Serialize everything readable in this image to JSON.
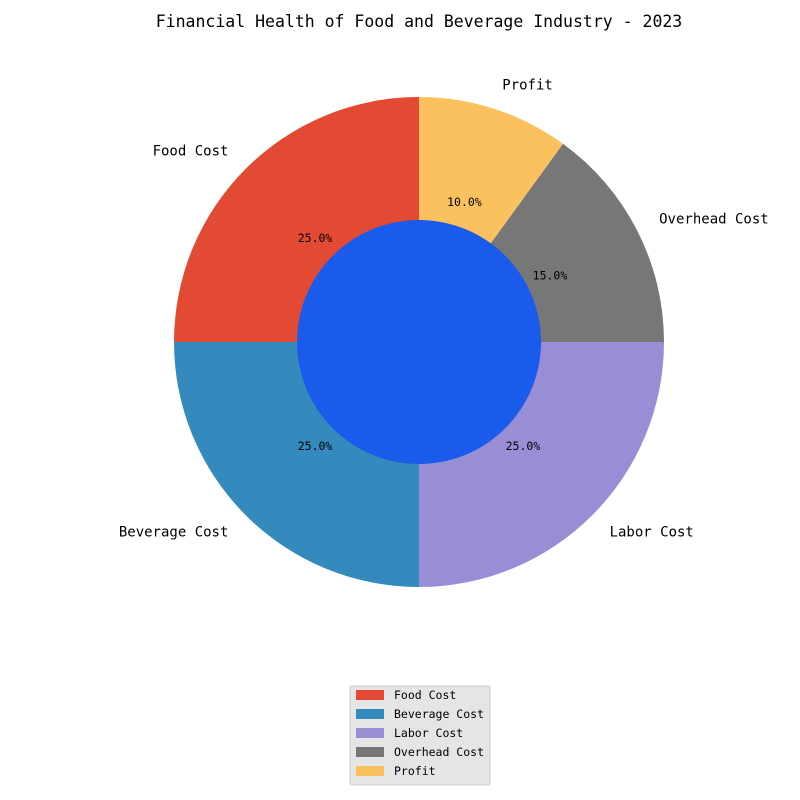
{
  "chart_data": {
    "type": "pie",
    "variant": "donut",
    "title": "Financial Health of Food and Beverage Industry - 2023",
    "categories": [
      "Food Cost",
      "Beverage Cost",
      "Labor Cost",
      "Overhead Cost",
      "Profit"
    ],
    "values": [
      25,
      25,
      25,
      15,
      10
    ],
    "percent_labels": [
      "25.0%",
      "25.0%",
      "25.0%",
      "15.0%",
      "10.0%"
    ],
    "colors": [
      "#E24A33",
      "#348ABD",
      "#988ED5",
      "#777777",
      "#FBC15E"
    ],
    "center_color": "#1A5BEB",
    "start_angle_deg": 90,
    "direction": "counterclockwise",
    "legend": {
      "position": "bottom",
      "entries": [
        "Food Cost",
        "Beverage Cost",
        "Labor Cost",
        "Overhead Cost",
        "Profit"
      ]
    }
  }
}
